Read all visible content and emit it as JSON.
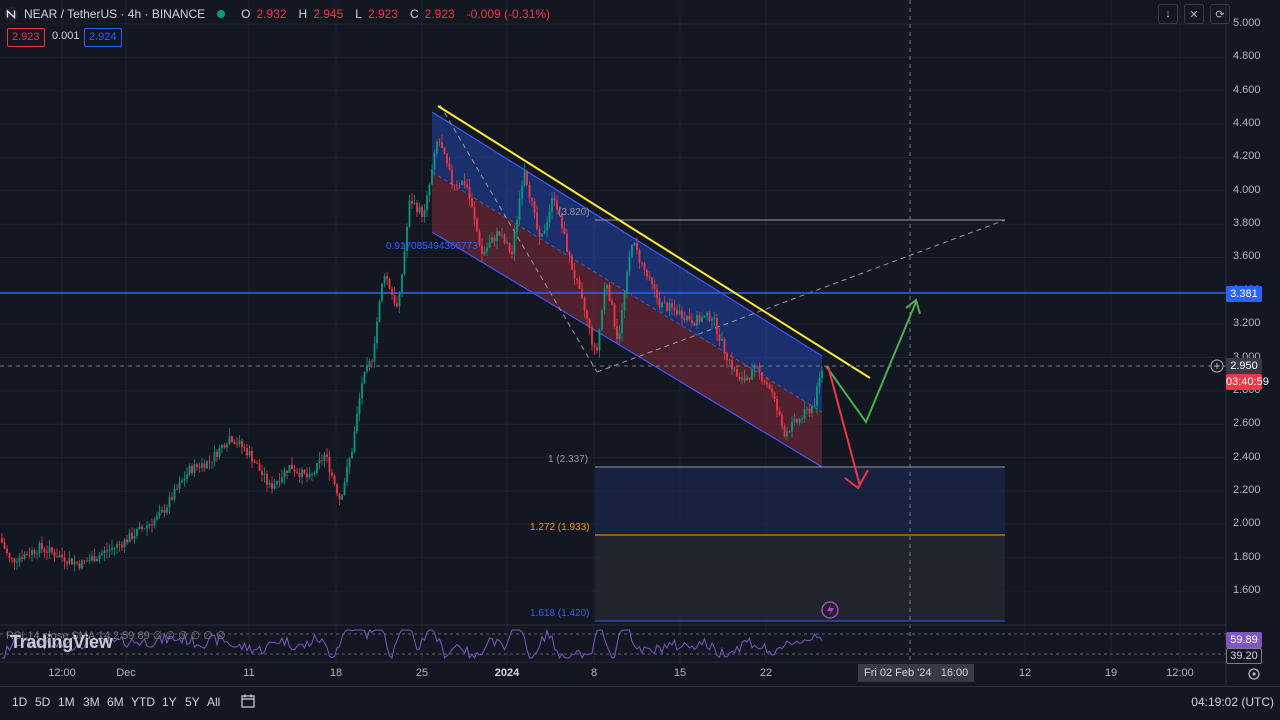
{
  "header": {
    "symbol": "NEAR / TetherUS · 4h · BINANCE",
    "open_label": "O",
    "open": "2.932",
    "high_label": "H",
    "high": "2.945",
    "low_label": "L",
    "low": "2.923",
    "close_label": "C",
    "close": "2.923",
    "change": "-0.009 (-0.31%)",
    "sell_price": "2.923",
    "spread": "0.001",
    "buy_price": "2.924",
    "tool_icons": [
      "arrow-down-icon",
      "collapse-icon",
      "refresh-icon"
    ]
  },
  "price_axis": {
    "labels": [
      "5.000",
      "4.800",
      "4.600",
      "4.400",
      "4.200",
      "4.000",
      "3.800",
      "3.600",
      "3.400",
      "3.200",
      "3.000",
      "2.800",
      "2.600",
      "2.400",
      "2.200",
      "2.000",
      "1.800",
      "1.600"
    ],
    "level_label": "3.381",
    "crosshair_price": "2.950",
    "last_price": "2.923",
    "countdown": "03:40:59",
    "rsi_value": "59.89",
    "rsi_sma": "39.20"
  },
  "time_axis": {
    "labels": [
      "12:00",
      "Dec",
      "11",
      "18",
      "25",
      "2024",
      "8",
      "15",
      "22",
      "12",
      "19",
      "12:00"
    ],
    "crosshair_date": "Fri 02 Feb '24",
    "crosshair_time": "16:00"
  },
  "drawings": {
    "fib_top": "(3.820)",
    "fib_1": "1 (2.337)",
    "fib_1272": "1.272 (1.933)",
    "fib_1618": "1.618 (1.420)",
    "channel_ratio": "0.917085494366773"
  },
  "rsi_legend": "RSI 14 close SMA 14 2  59.89  ∅ ∅ ∅ ∅ ∅ ∅",
  "watermark": "TradingView",
  "bottom_bar": {
    "ranges": [
      "1D",
      "5D",
      "1M",
      "3M",
      "6M",
      "YTD",
      "1Y",
      "5Y",
      "All"
    ],
    "clock": "04:19:02 (UTC)"
  },
  "colors": {
    "background": "#131722",
    "up": "#089981",
    "down": "#f23645",
    "level_line": "#2962ff",
    "trendline": "#ffeb3b",
    "rsi": "#7e57c2"
  },
  "chart_data": {
    "type": "candlestick",
    "symbol": "NEAR/USDT",
    "interval": "4h",
    "ylim": [
      1.45,
      5.05
    ],
    "anchors": [
      {
        "x": 0,
        "y": 1.92
      },
      {
        "x": 10,
        "y": 1.78
      },
      {
        "x": 40,
        "y": 1.86
      },
      {
        "x": 80,
        "y": 1.76
      },
      {
        "x": 120,
        "y": 1.88
      },
      {
        "x": 160,
        "y": 2.05
      },
      {
        "x": 190,
        "y": 2.33
      },
      {
        "x": 210,
        "y": 2.38
      },
      {
        "x": 230,
        "y": 2.53
      },
      {
        "x": 250,
        "y": 2.42
      },
      {
        "x": 270,
        "y": 2.22
      },
      {
        "x": 290,
        "y": 2.35
      },
      {
        "x": 310,
        "y": 2.27
      },
      {
        "x": 325,
        "y": 2.42
      },
      {
        "x": 340,
        "y": 2.15
      },
      {
        "x": 352,
        "y": 2.45
      },
      {
        "x": 362,
        "y": 2.85
      },
      {
        "x": 372,
        "y": 3.0
      },
      {
        "x": 384,
        "y": 3.52
      },
      {
        "x": 398,
        "y": 3.28
      },
      {
        "x": 410,
        "y": 3.95
      },
      {
        "x": 424,
        "y": 3.85
      },
      {
        "x": 438,
        "y": 4.32
      },
      {
        "x": 452,
        "y": 4.05
      },
      {
        "x": 466,
        "y": 4.05
      },
      {
        "x": 482,
        "y": 3.62
      },
      {
        "x": 498,
        "y": 3.75
      },
      {
        "x": 512,
        "y": 3.62
      },
      {
        "x": 524,
        "y": 4.15
      },
      {
        "x": 540,
        "y": 3.68
      },
      {
        "x": 554,
        "y": 3.98
      },
      {
        "x": 570,
        "y": 3.58
      },
      {
        "x": 586,
        "y": 3.25
      },
      {
        "x": 596,
        "y": 3.0
      },
      {
        "x": 606,
        "y": 3.48
      },
      {
        "x": 618,
        "y": 3.1
      },
      {
        "x": 632,
        "y": 3.7
      },
      {
        "x": 646,
        "y": 3.5
      },
      {
        "x": 660,
        "y": 3.32
      },
      {
        "x": 676,
        "y": 3.28
      },
      {
        "x": 694,
        "y": 3.22
      },
      {
        "x": 712,
        "y": 3.25
      },
      {
        "x": 724,
        "y": 3.05
      },
      {
        "x": 740,
        "y": 2.85
      },
      {
        "x": 756,
        "y": 2.93
      },
      {
        "x": 770,
        "y": 2.82
      },
      {
        "x": 784,
        "y": 2.55
      },
      {
        "x": 800,
        "y": 2.63
      },
      {
        "x": 814,
        "y": 2.72
      },
      {
        "x": 822,
        "y": 2.93
      }
    ],
    "levels": [
      3.381,
      3.82,
      2.337,
      1.933,
      1.42
    ],
    "rsi_last": 59.89,
    "rsi_sma_last": 39.2
  }
}
